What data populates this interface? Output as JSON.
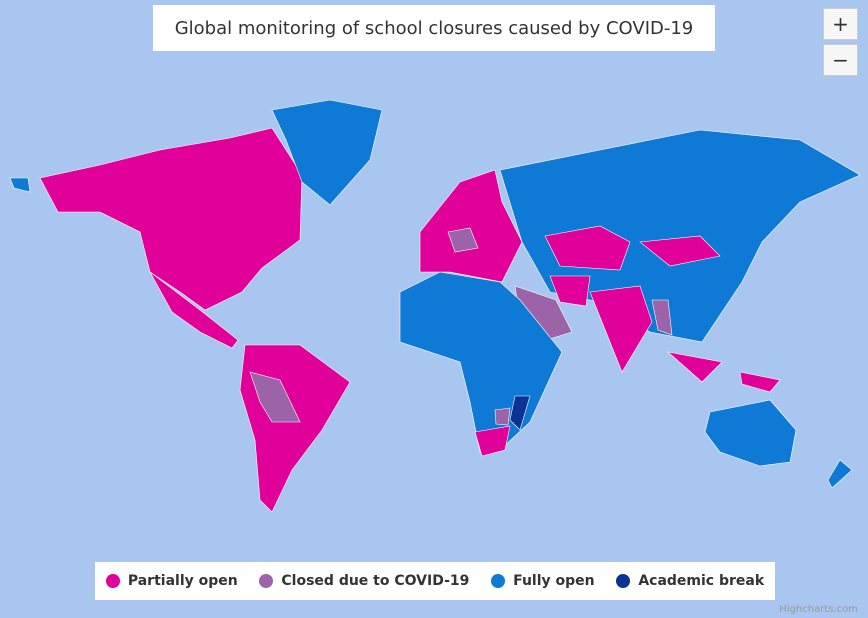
{
  "title": "Global monitoring of school closures caused by COVID-19",
  "zoom": {
    "in": "+",
    "out": "−"
  },
  "legend": {
    "items": [
      {
        "name": "Partially open",
        "color": "#e1009a"
      },
      {
        "name": "Closed due to COVID-19",
        "color": "#9c63a8"
      },
      {
        "name": "Fully open",
        "color": "#0e7ad6"
      },
      {
        "name": "Academic break",
        "color": "#0b3396"
      }
    ]
  },
  "credits": "Highcharts.com"
}
